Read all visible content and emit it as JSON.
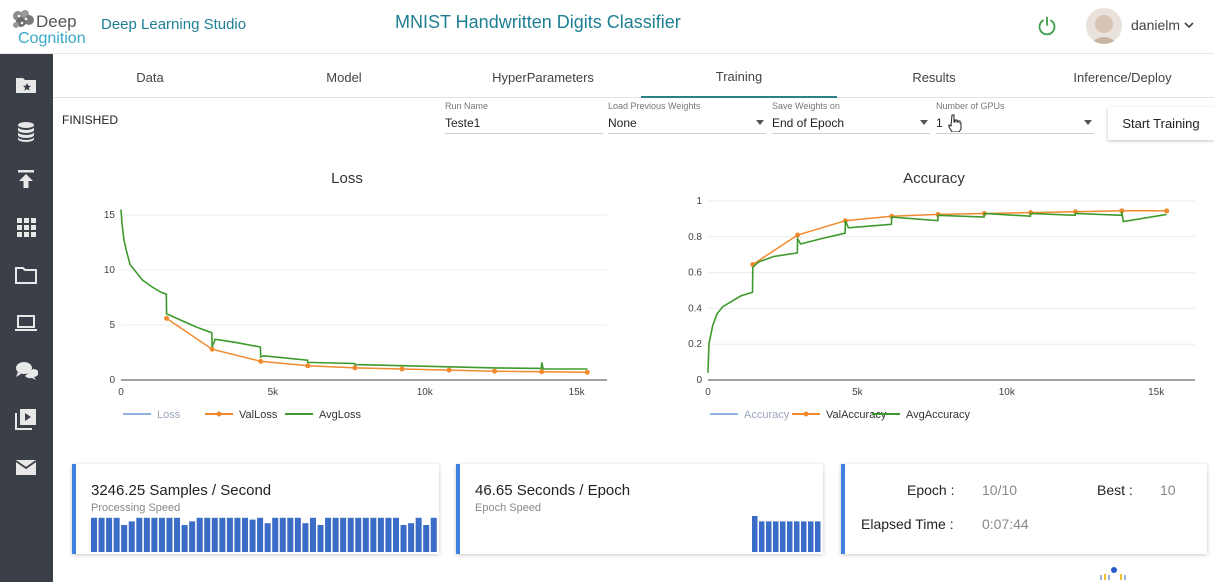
{
  "header": {
    "logo_deep": "Deep",
    "logo_cognition": "Cognition",
    "app_name": "Deep Learning Studio",
    "title": "MNIST Handwritten Digits Classifier",
    "username": "danielm"
  },
  "sidebar": {
    "items": [
      {
        "name": "projects",
        "icon": "folder-star-icon"
      },
      {
        "name": "datasets",
        "icon": "database-icon"
      },
      {
        "name": "upload",
        "icon": "upload-icon"
      },
      {
        "name": "apps",
        "icon": "grid-icon"
      },
      {
        "name": "files",
        "icon": "folder-icon"
      },
      {
        "name": "environments",
        "icon": "laptop-icon"
      },
      {
        "name": "forum",
        "icon": "chat-icon"
      },
      {
        "name": "videos",
        "icon": "video-icon"
      },
      {
        "name": "messages",
        "icon": "mail-icon"
      }
    ]
  },
  "tabs": [
    {
      "label": "Data"
    },
    {
      "label": "Model"
    },
    {
      "label": "HyperParameters"
    },
    {
      "label": "Training",
      "active": true
    },
    {
      "label": "Results"
    },
    {
      "label": "Inference/Deploy"
    }
  ],
  "controls": {
    "status": "FINISHED",
    "run_name_label": "Run Name",
    "run_name_value": "Teste1",
    "load_weights_label": "Load Previous Weights",
    "load_weights_value": "None",
    "save_weights_label": "Save Weights on",
    "save_weights_value": "End of Epoch",
    "gpus_label": "Number of GPUs",
    "gpus_value": "1",
    "start_button": "Start Training"
  },
  "colors": {
    "accent": "#1e7f94",
    "sidebar": "#3b4048",
    "loss": "#8fb3dc",
    "val": "#f08a2d",
    "avg": "#3d9a2c",
    "card_accent": "#3d82e0",
    "bar": "#3b6cc8"
  },
  "chart_data": [
    {
      "type": "line",
      "title": "Loss",
      "xlim": [
        0,
        16000
      ],
      "ylim": [
        0,
        16
      ],
      "xticks": [
        0,
        5000,
        10000,
        15000
      ],
      "xtick_labels": [
        "0",
        "5k",
        "10k",
        "15k"
      ],
      "yticks": [
        0,
        5,
        10,
        15
      ],
      "ytick_labels": [
        "0",
        "5",
        "10",
        "15"
      ],
      "legend": [
        "Loss",
        "ValLoss",
        "AvgLoss"
      ],
      "series": [
        {
          "name": "ValLoss",
          "x": [
            1500,
            3000,
            4600,
            6150,
            7700,
            9250,
            10800,
            12300,
            13850,
            15350
          ],
          "y": [
            5.6,
            2.8,
            1.7,
            1.3,
            1.1,
            1.0,
            0.9,
            0.8,
            0.75,
            0.7
          ]
        },
        {
          "name": "AvgLoss",
          "x": [
            0,
            30,
            100,
            200,
            300,
            500,
            700,
            1000,
            1300,
            1490,
            1500,
            1600,
            2000,
            2500,
            2990,
            3000,
            3100,
            3800,
            4590,
            4600,
            4700,
            6140,
            6150,
            7690,
            7700,
            9240,
            9250,
            10790,
            10800,
            12290,
            12300,
            13840,
            13850,
            13900,
            15350
          ],
          "y": [
            15.5,
            14.3,
            12.7,
            11.5,
            10.5,
            9.8,
            9.1,
            8.5,
            8.0,
            7.8,
            6.0,
            5.9,
            5.4,
            4.8,
            4.3,
            3.0,
            3.7,
            3.4,
            3.0,
            2.1,
            2.2,
            1.8,
            1.6,
            1.5,
            1.4,
            1.3,
            1.3,
            1.2,
            1.2,
            1.1,
            1.1,
            1.05,
            1.6,
            1.0,
            1.0
          ]
        }
      ]
    },
    {
      "type": "line",
      "title": "Accuracy",
      "xlim": [
        0,
        16300
      ],
      "ylim": [
        0,
        1.0
      ],
      "xticks": [
        0,
        5000,
        10000,
        15000
      ],
      "xtick_labels": [
        "0",
        "5k",
        "10k",
        "15k"
      ],
      "yticks": [
        0,
        0.2,
        0.4,
        0.6,
        0.8,
        1.0
      ],
      "ytick_labels": [
        "0",
        "0.2",
        "0.4",
        "0.6",
        "0.8",
        "1"
      ],
      "legend": [
        "Accuracy",
        "ValAccuracy",
        "AvgAccuracy"
      ],
      "series": [
        {
          "name": "ValAccuracy",
          "x": [
            1500,
            3000,
            4600,
            6150,
            7700,
            9250,
            10800,
            12300,
            13850,
            15350
          ],
          "y": [
            0.645,
            0.81,
            0.89,
            0.915,
            0.925,
            0.93,
            0.935,
            0.94,
            0.945,
            0.945
          ]
        },
        {
          "name": "AvgAccuracy",
          "x": [
            0,
            30,
            150,
            300,
            500,
            800,
            1100,
            1490,
            1500,
            1700,
            2200,
            2990,
            3000,
            3100,
            3800,
            4590,
            4600,
            4700,
            6140,
            6150,
            7690,
            7700,
            9240,
            9250,
            10790,
            10800,
            12290,
            12300,
            13840,
            13850,
            13900,
            15350
          ],
          "y": [
            0.04,
            0.2,
            0.3,
            0.37,
            0.41,
            0.44,
            0.47,
            0.49,
            0.63,
            0.66,
            0.69,
            0.71,
            0.79,
            0.76,
            0.79,
            0.82,
            0.89,
            0.85,
            0.87,
            0.91,
            0.89,
            0.92,
            0.91,
            0.93,
            0.915,
            0.93,
            0.92,
            0.93,
            0.92,
            0.94,
            0.885,
            0.925
          ]
        }
      ]
    }
  ],
  "stats": {
    "samples_speed": "3246.25 Samples / Second",
    "samples_sub": "Processing Speed",
    "samples_bars": [
      0.95,
      0.95,
      0.95,
      0.95,
      0.75,
      0.85,
      0.95,
      0.95,
      0.95,
      0.95,
      0.95,
      0.95,
      0.75,
      0.85,
      0.95,
      0.95,
      0.95,
      0.95,
      0.95,
      0.95,
      0.95,
      0.9,
      0.95,
      0.8,
      0.95,
      0.95,
      0.95,
      0.95,
      0.8,
      0.95,
      0.75,
      0.95,
      0.95,
      0.95,
      0.95,
      0.95,
      0.95,
      0.95,
      0.95,
      0.95,
      0.95,
      0.75,
      0.8,
      0.95,
      0.75,
      0.95
    ],
    "epoch_speed": "46.65 Seconds / Epoch",
    "epoch_sub": "Epoch Speed",
    "epoch_bars": [
      1.0,
      0.85,
      0.85,
      0.85,
      0.85,
      0.85,
      0.85,
      0.85,
      0.85,
      0.85
    ],
    "epoch_label": "Epoch :",
    "epoch_value": "10/10",
    "best_label": "Best :",
    "best_value": "10",
    "elapsed_label": "Elapsed Time :",
    "elapsed_value": "0:07:44"
  }
}
